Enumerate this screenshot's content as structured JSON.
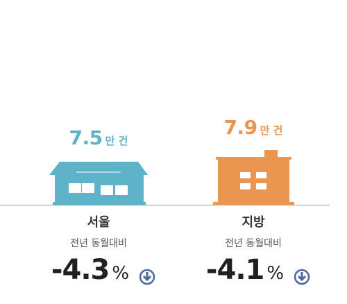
{
  "items": [
    {
      "value": 7.5,
      "unit": "만 건",
      "region": "서울",
      "subtitle": "전년 동월대비",
      "change": -4.3,
      "change_unit": "%"
    },
    {
      "value": 7.9,
      "unit": "만 건",
      "region": "지방",
      "subtitle": "전년 동월대비",
      "change": -4.1,
      "change_unit": "%"
    }
  ]
}
